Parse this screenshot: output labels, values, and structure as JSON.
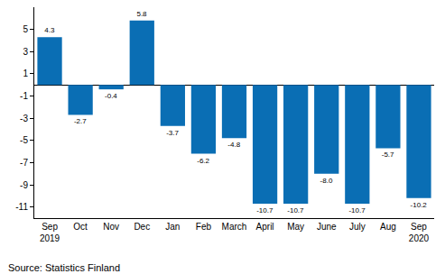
{
  "chart_data": {
    "type": "bar",
    "categories": [
      "Sep 2019",
      "Oct",
      "Nov",
      "Dec",
      "Jan",
      "Feb",
      "March",
      "April",
      "May",
      "June",
      "July",
      "Aug",
      "Sep 2020"
    ],
    "values": [
      4.3,
      -2.7,
      -0.4,
      5.8,
      -3.7,
      -6.2,
      -4.8,
      -10.7,
      -10.7,
      -8.0,
      -10.7,
      -5.7,
      -10.2
    ],
    "value_labels": [
      "4.3",
      "-2.7",
      "-0.4",
      "5.8",
      "-3.7",
      "-6.2",
      "-4.8",
      "-10.7",
      "-10.7",
      "-8.0",
      "-10.7",
      "-5.7",
      "-10.2"
    ],
    "color": "#0a6eb4",
    "ylim": [
      -12,
      7
    ],
    "yticks": [
      5,
      3,
      1,
      -1,
      -3,
      -5,
      -7,
      -9,
      -11
    ],
    "grid": false,
    "data_labels": true,
    "annotations": [
      "Source: Statistics Finland"
    ]
  }
}
